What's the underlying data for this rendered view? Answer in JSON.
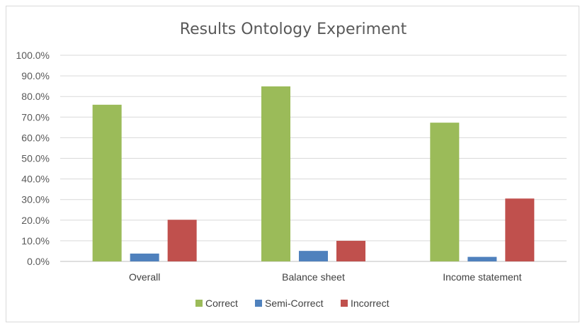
{
  "chart_data": {
    "type": "bar",
    "title": "Results Ontology Experiment",
    "categories": [
      "Overall",
      "Balance sheet",
      "Income statement"
    ],
    "series": [
      {
        "name": "Correct",
        "color": "#9bbb59",
        "values": [
          76.0,
          84.9,
          67.3
        ]
      },
      {
        "name": "Semi-Correct",
        "color": "#4f81bd",
        "values": [
          3.8,
          5.1,
          2.2
        ]
      },
      {
        "name": "Incorrect",
        "color": "#c0504d",
        "values": [
          20.2,
          10.0,
          30.5
        ]
      }
    ],
    "ylim": [
      0,
      100
    ],
    "yticks": [
      "0.0%",
      "10.0%",
      "20.0%",
      "30.0%",
      "40.0%",
      "50.0%",
      "60.0%",
      "70.0%",
      "80.0%",
      "90.0%",
      "100.0%"
    ],
    "grid": true,
    "legend_position": "bottom",
    "xlabel": "",
    "ylabel": ""
  }
}
